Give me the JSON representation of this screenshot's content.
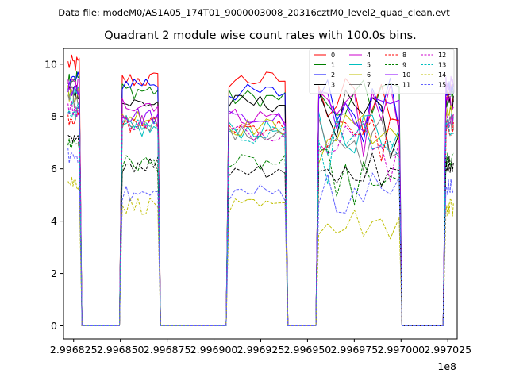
{
  "figure": {
    "header": "Data file: modeM0/AS1A05_174T01_9000003008_20316cztM0_level2_quad_clean.evt",
    "title": "Quadrant 2 module wise count rates with 100.0s bins."
  },
  "chart_data": {
    "type": "line",
    "title": "Quadrant 2 module wise count rates with 100.0s bins.",
    "xlabel": "",
    "ylabel": "",
    "x_offset_label": "1e8",
    "xlim": [
      2.9968196,
      2.99703
    ],
    "ylim": [
      -0.5,
      10.6
    ],
    "grid": false,
    "legend_placement": "top-right",
    "legend_columns": 4,
    "x_tick_values": [
      2.996825,
      2.99685,
      2.996875,
      2.9969,
      2.996925,
      2.99695,
      2.996975,
      2.997,
      2.997025
    ],
    "x_tick_labels": [
      "2.996825",
      "2.996850",
      "2.996875",
      "2.996900",
      "2.996925",
      "2.996950",
      "2.996975",
      "2.997000",
      "2.997025"
    ],
    "y_tick_values": [
      0,
      2,
      4,
      6,
      8,
      10
    ],
    "y_tick_labels": [
      "0",
      "2",
      "4",
      "6",
      "8",
      "10"
    ],
    "segments_x": [
      [
        2.996822,
        2.996828
      ],
      [
        2.996851,
        2.99687
      ],
      [
        2.996908,
        2.996938
      ],
      [
        2.996956,
        2.996999
      ],
      [
        2.997024,
        2.997028
      ]
    ],
    "gaps_x": [
      [
        2.996828,
        2.996851
      ],
      [
        2.99687,
        2.996908
      ],
      [
        2.996938,
        2.996956
      ],
      [
        2.996999,
        2.997024
      ]
    ],
    "series": [
      {
        "name": "0",
        "color": "#ff0000",
        "dash": "solid",
        "levels": [
          10.0,
          9.4,
          9.4,
          8.6,
          8.9
        ]
      },
      {
        "name": "1",
        "color": "#008000",
        "dash": "solid",
        "levels": [
          9.5,
          9.0,
          8.7,
          8.6,
          8.7
        ]
      },
      {
        "name": "2",
        "color": "#0000ff",
        "dash": "solid",
        "levels": [
          9.4,
          9.3,
          8.9,
          8.7,
          9.0
        ]
      },
      {
        "name": "3",
        "color": "#000000",
        "dash": "solid",
        "levels": [
          9.0,
          8.5,
          8.5,
          8.2,
          8.5
        ]
      },
      {
        "name": "4",
        "color": "#cc00cc",
        "dash": "solid",
        "levels": [
          9.2,
          8.5,
          8.0,
          8.4,
          8.6
        ]
      },
      {
        "name": "5",
        "color": "#00bfbf",
        "dash": "solid",
        "levels": [
          8.8,
          7.5,
          7.5,
          7.4,
          8.0
        ]
      },
      {
        "name": "6",
        "color": "#bfbf00",
        "dash": "solid",
        "levels": [
          8.9,
          8.0,
          7.6,
          7.8,
          8.1
        ]
      },
      {
        "name": "7",
        "color": "#808080",
        "dash": "solid",
        "levels": [
          8.6,
          7.8,
          7.3,
          7.5,
          7.8
        ]
      },
      {
        "name": "8",
        "color": "#ff0000",
        "dash": "dashed",
        "levels": [
          8.0,
          7.7,
          7.6,
          7.2,
          7.5
        ]
      },
      {
        "name": "9",
        "color": "#008000",
        "dash": "dashed",
        "levels": [
          7.0,
          6.2,
          6.2,
          5.9,
          6.3
        ]
      },
      {
        "name": "10",
        "color": "#8b00ff",
        "dash": "solid",
        "levels": [
          9.1,
          8.0,
          7.9,
          8.2,
          9.2
        ]
      },
      {
        "name": "11",
        "color": "#000000",
        "dash": "dashed",
        "levels": [
          7.0,
          6.2,
          6.0,
          5.9,
          6.2
        ]
      },
      {
        "name": "12",
        "color": "#cc00cc",
        "dash": "dashed",
        "levels": [
          8.3,
          7.8,
          7.4,
          7.5,
          7.8
        ]
      },
      {
        "name": "13",
        "color": "#00bfbf",
        "dash": "dashed",
        "levels": [
          8.2,
          7.7,
          7.3,
          7.4,
          7.6
        ]
      },
      {
        "name": "14",
        "color": "#bfbf00",
        "dash": "dashed",
        "levels": [
          5.5,
          4.6,
          4.5,
          4.3,
          4.5
        ]
      },
      {
        "name": "15",
        "color": "#6060ff",
        "dash": "dashed",
        "levels": [
          6.5,
          5.0,
          5.1,
          5.2,
          5.3
        ]
      }
    ]
  }
}
